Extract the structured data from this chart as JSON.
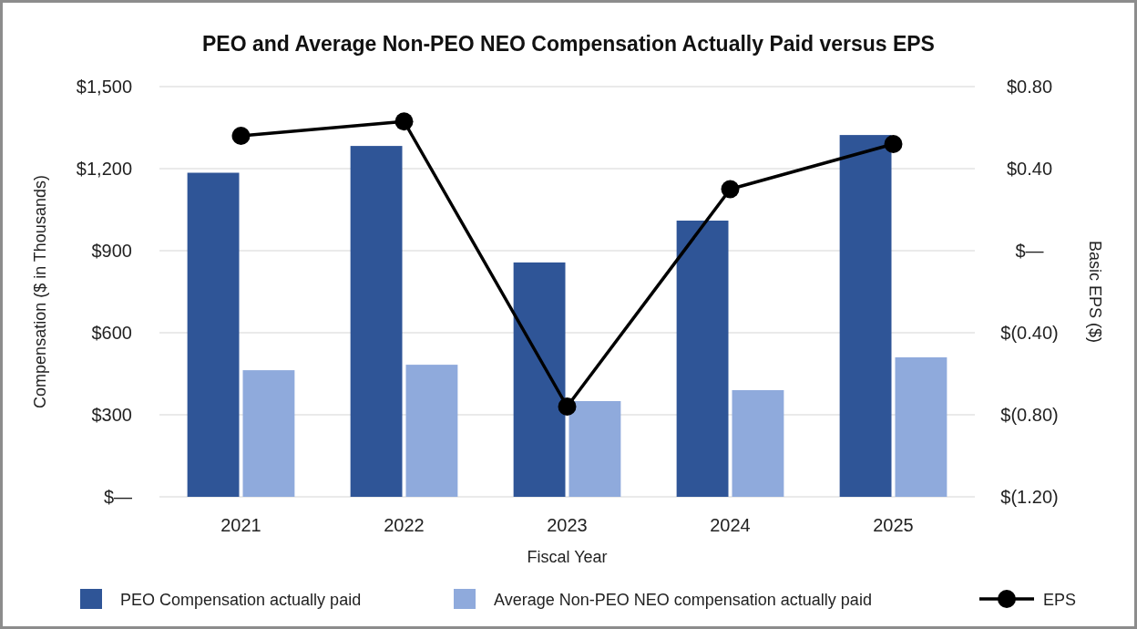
{
  "chart_data": {
    "type": "bar",
    "title": "PEO and Average Non-PEO NEO Compensation Actually Paid versus EPS",
    "xlabel": "Fiscal Year",
    "ylabel": "Compensation ($ in Thousands)",
    "y2label": "Basic EPS ($)",
    "categories": [
      "2021",
      "2022",
      "2023",
      "2024",
      "2025"
    ],
    "series": [
      {
        "name": "PEO Compensation actually paid",
        "color": "#2f5597",
        "values": [
          1185,
          1283,
          857,
          1010,
          1323
        ]
      },
      {
        "name": "Average Non-PEO NEO compensation actually paid",
        "color": "#8faadc",
        "values": [
          463,
          483,
          350,
          390,
          510
        ]
      },
      {
        "name": "EPS",
        "type": "line",
        "axis": "y2",
        "color": "#000000",
        "marker": "circle",
        "values": [
          0.56,
          0.63,
          -0.76,
          0.3,
          0.52
        ]
      }
    ],
    "ylim": [
      0,
      1500
    ],
    "yticks": [
      {
        "value": 0,
        "label": "$—"
      },
      {
        "value": 300,
        "label": "$300"
      },
      {
        "value": 600,
        "label": "$600"
      },
      {
        "value": 900,
        "label": "$900"
      },
      {
        "value": 1200,
        "label": "$1,200"
      },
      {
        "value": 1500,
        "label": "$1,500"
      }
    ],
    "y2lim": [
      -1.2,
      0.8
    ],
    "y2ticks": [
      {
        "value": -1.2,
        "label": "$(1.20)"
      },
      {
        "value": -0.8,
        "label": "$(0.80)"
      },
      {
        "value": -0.4,
        "label": "$(0.40)"
      },
      {
        "value": 0,
        "label": "$—"
      },
      {
        "value": 0.4,
        "label": "$0.40"
      },
      {
        "value": 0.8,
        "label": "$0.80"
      }
    ],
    "grid": "y",
    "legend": "bottom"
  }
}
